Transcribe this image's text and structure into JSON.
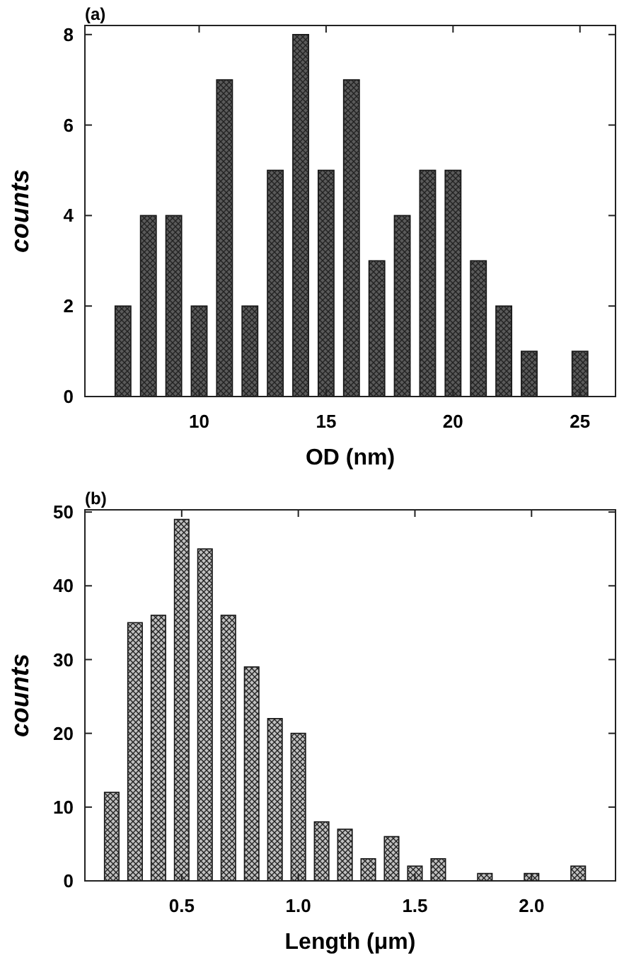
{
  "chart_data": [
    {
      "type": "bar",
      "title": "(a)",
      "xlabel": "OD (nm)",
      "ylabel": "counts",
      "x": [
        7,
        8,
        9,
        10,
        11,
        12,
        13,
        14,
        15,
        16,
        17,
        18,
        19,
        20,
        21,
        22,
        23,
        25
      ],
      "series": [
        {
          "color": "#5a5a5a",
          "values": [
            2,
            4,
            4,
            2,
            7,
            2,
            5,
            8,
            5,
            7,
            3,
            4,
            5,
            5,
            3,
            2,
            1,
            1
          ]
        }
      ],
      "xlim": [
        5.5,
        26.4
      ],
      "xticks": [
        10,
        15,
        20,
        25
      ],
      "ylim": [
        0,
        8.2
      ],
      "yticks": [
        0,
        2,
        4,
        6,
        8
      ],
      "grid": false
    },
    {
      "type": "bar",
      "title": "(b)",
      "xlabel": "Length (μm)",
      "ylabel": "counts",
      "x": [
        0.2,
        0.3,
        0.4,
        0.5,
        0.6,
        0.7,
        0.8,
        0.9,
        1.0,
        1.1,
        1.2,
        1.3,
        1.4,
        1.5,
        1.6,
        1.8,
        2.0,
        2.2
      ],
      "series": [
        {
          "color": "#c0c0c0",
          "values": [
            12,
            35,
            36,
            49,
            45,
            36,
            29,
            22,
            20,
            8,
            7,
            3,
            6,
            2,
            3,
            1,
            1,
            2
          ]
        }
      ],
      "xlim": [
        0.085,
        2.36
      ],
      "xticks": [
        {
          "value": 0.5,
          "label": "0.5"
        },
        {
          "value": 1,
          "label": "1.0"
        },
        {
          "value": 1.5,
          "label": "1.5"
        },
        {
          "value": 2,
          "label": "2.0"
        }
      ],
      "ylim": [
        0,
        50.3
      ],
      "yticks": [
        0,
        10,
        20,
        30,
        40,
        50
      ],
      "grid": false
    }
  ]
}
